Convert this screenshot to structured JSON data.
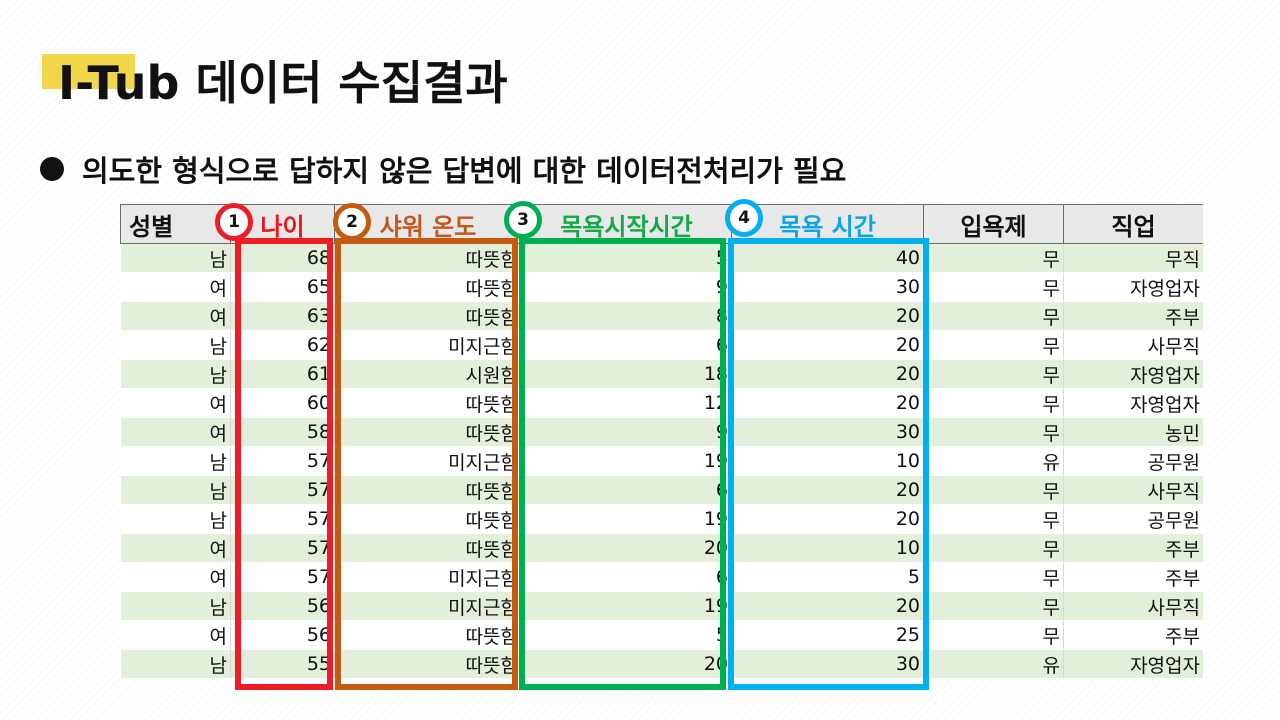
{
  "slide": {
    "title": "I-Tub 데이터 수집결과",
    "bullet": "의도한 형식으로 답하지 않은 답변에 대한 데이터전처리가 필요"
  },
  "table": {
    "columns": [
      "성별",
      "나이",
      "샤워 온도",
      "목욕시작시간",
      "목욕 시간",
      "입욕제",
      "직업"
    ],
    "rows": [
      [
        "남",
        "68",
        "따뜻함",
        "5",
        "40",
        "무",
        "무직"
      ],
      [
        "여",
        "65",
        "따뜻함",
        "9",
        "30",
        "무",
        "자영업자"
      ],
      [
        "여",
        "63",
        "따뜻함",
        "8",
        "20",
        "무",
        "주부"
      ],
      [
        "남",
        "62",
        "미지근함",
        "6",
        "20",
        "무",
        "사무직"
      ],
      [
        "남",
        "61",
        "시원함",
        "18",
        "20",
        "무",
        "자영업자"
      ],
      [
        "여",
        "60",
        "따뜻함",
        "12",
        "20",
        "무",
        "자영업자"
      ],
      [
        "여",
        "58",
        "따뜻함",
        "9",
        "30",
        "무",
        "농민"
      ],
      [
        "남",
        "57",
        "미지근함",
        "19",
        "10",
        "유",
        "공무원"
      ],
      [
        "남",
        "57",
        "따뜻함",
        "6",
        "20",
        "무",
        "사무직"
      ],
      [
        "남",
        "57",
        "따뜻함",
        "19",
        "20",
        "무",
        "공무원"
      ],
      [
        "여",
        "57",
        "따뜻함",
        "20",
        "10",
        "무",
        "주부"
      ],
      [
        "여",
        "57",
        "미지근함",
        "6",
        "5",
        "무",
        "주부"
      ],
      [
        "남",
        "56",
        "미지근함",
        "19",
        "20",
        "무",
        "사무직"
      ],
      [
        "여",
        "56",
        "따뜻함",
        "5",
        "25",
        "무",
        "주부"
      ],
      [
        "남",
        "55",
        "따뜻함",
        "20",
        "30",
        "유",
        "자영업자"
      ]
    ]
  },
  "highlights": [
    {
      "number": "1",
      "column": "나이",
      "color": "#ee1c24"
    },
    {
      "number": "2",
      "column": "샤워 온도",
      "color": "#c55a11"
    },
    {
      "number": "3",
      "column": "목욕시작시간",
      "color": "#00b050"
    },
    {
      "number": "4",
      "column": "목욕 시간",
      "color": "#00b0f0"
    }
  ],
  "colors": {
    "title_accent": "#f2d64b",
    "row_band": "#e2efda",
    "header_bg": "#e8e8e8"
  }
}
